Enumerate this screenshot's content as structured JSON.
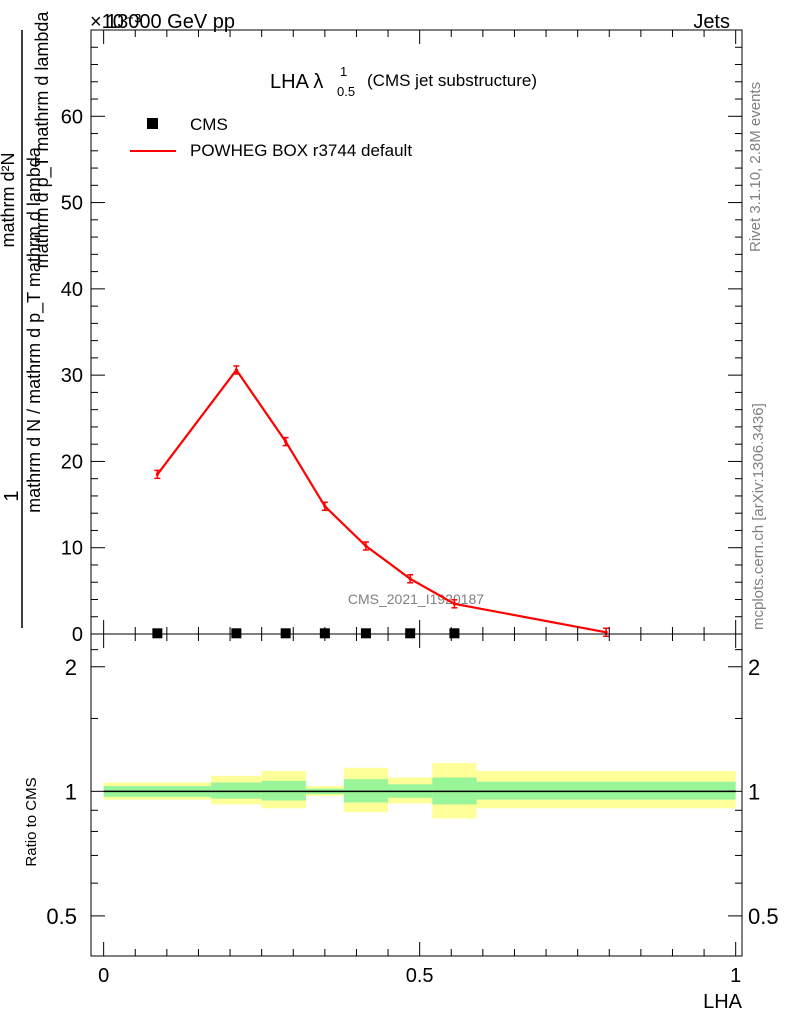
{
  "header": {
    "left": "13000 GeV pp",
    "right": "Jets",
    "exponent": "×10⁻³"
  },
  "side_labels": {
    "top": "Rivet 3.1.10,  2.8M events",
    "bottom": "mcplots.cern.ch [arXiv:1306.3436]"
  },
  "watermark": "CMS_2021_I1920187",
  "colors": {
    "model": "#ff0000",
    "data": "#000000",
    "band_inner": "#99f599",
    "band_outer": "#ffff99"
  },
  "chart_data": [
    {
      "type": "line",
      "title": "LHA λ",
      "title_sup": "1",
      "title_sub": "0.5",
      "title_suffix": "(CMS jet substructure)",
      "ylabel_num": "1",
      "ylabel_den": "mathrm d N / mathrm d p_T mathrm d lambda",
      "ylabel_right_num": "mathrm d²N",
      "ylabel_right_den": "mathrm d p_T mathrm d lambda",
      "ylim": [
        0,
        70
      ],
      "yticks": [
        0,
        10,
        20,
        30,
        40,
        50,
        60
      ],
      "ytick_labels": [
        "0",
        "10",
        "20",
        "30",
        "40",
        "50",
        "60"
      ],
      "legend": [
        "CMS",
        "POWHEG BOX r3744 default"
      ],
      "legend_position": "top-left",
      "series": [
        {
          "name": "POWHEG BOX r3744 default",
          "x": [
            0.085,
            0.21,
            0.288,
            0.35,
            0.415,
            0.485,
            0.555,
            0.795
          ],
          "y": [
            18.5,
            30.6,
            22.3,
            14.8,
            10.2,
            6.4,
            3.5,
            0.2
          ]
        },
        {
          "name": "CMS",
          "x": [
            0.085,
            0.21,
            0.288,
            0.35,
            0.415,
            0.485,
            0.555
          ],
          "y": [
            0.08,
            0.08,
            0.08,
            0.08,
            0.08,
            0.08,
            0.08
          ]
        }
      ]
    },
    {
      "type": "area",
      "ylabel": "Ratio to CMS",
      "xlabel": "LHA",
      "xlim": [
        -0.02,
        1.01
      ],
      "xticks": [
        0,
        0.5,
        1
      ],
      "xtick_labels": [
        "0",
        "0.5",
        "1"
      ],
      "ylim": [
        0.4,
        2.4
      ],
      "log_scale_y": true,
      "yticks": [
        0.5,
        1,
        2
      ],
      "ytick_labels": [
        "0.5",
        "1",
        "2"
      ],
      "bins": [
        {
          "x0": 0.0,
          "x1": 0.17,
          "inner": [
            0.97,
            1.03
          ],
          "outer": [
            0.955,
            1.05
          ]
        },
        {
          "x0": 0.17,
          "x1": 0.25,
          "inner": [
            0.96,
            1.05
          ],
          "outer": [
            0.93,
            1.09
          ]
        },
        {
          "x0": 0.25,
          "x1": 0.32,
          "inner": [
            0.95,
            1.06
          ],
          "outer": [
            0.91,
            1.12
          ]
        },
        {
          "x0": 0.32,
          "x1": 0.38,
          "inner": [
            0.985,
            1.015
          ],
          "outer": [
            0.975,
            1.03
          ]
        },
        {
          "x0": 0.38,
          "x1": 0.45,
          "inner": [
            0.94,
            1.07
          ],
          "outer": [
            0.89,
            1.14
          ]
        },
        {
          "x0": 0.45,
          "x1": 0.52,
          "inner": [
            0.965,
            1.04
          ],
          "outer": [
            0.935,
            1.08
          ]
        },
        {
          "x0": 0.52,
          "x1": 0.59,
          "inner": [
            0.93,
            1.08
          ],
          "outer": [
            0.86,
            1.17
          ]
        },
        {
          "x0": 0.59,
          "x1": 1.0,
          "inner": [
            0.955,
            1.055
          ],
          "outer": [
            0.91,
            1.12
          ]
        }
      ],
      "reference": 1
    }
  ]
}
